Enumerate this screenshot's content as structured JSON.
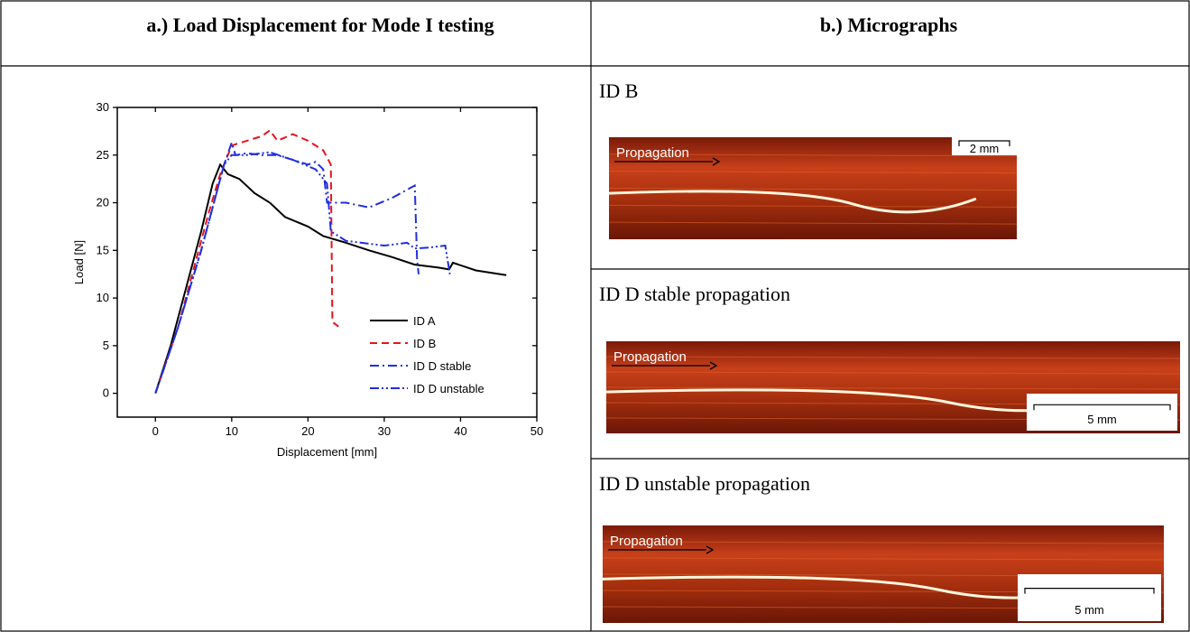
{
  "header": {
    "left": "a.)  Load Displacement for Mode I testing",
    "right": "b.) Micrographs"
  },
  "chart_data": {
    "type": "line",
    "x_label": "Displacement [mm]",
    "y_label": "Load [N]",
    "xlim": [
      -5,
      50
    ],
    "ylim": [
      -2.5,
      30
    ],
    "xticks": [
      0,
      10,
      20,
      30,
      40,
      50
    ],
    "yticks": [
      0,
      5,
      10,
      15,
      20,
      25,
      30
    ],
    "legend": "lower right",
    "series": [
      {
        "name": "ID A",
        "color": "#000000",
        "line_style": "solid",
        "x": [
          0,
          2,
          4,
          6,
          7.5,
          8.5,
          9.5,
          11,
          13,
          15,
          17,
          20,
          22,
          25,
          28,
          31,
          34,
          37,
          38.5,
          39,
          42,
          46
        ],
        "values": [
          0,
          5,
          11,
          17,
          22,
          24,
          23,
          22.5,
          21,
          20,
          18.5,
          17.5,
          16.5,
          15.8,
          15,
          14.3,
          13.5,
          13.2,
          13,
          13.7,
          12.9,
          12.4
        ]
      },
      {
        "name": "ID B",
        "color": "#e8141c",
        "line_style": "dash",
        "x": [
          0,
          3,
          5,
          7,
          8.5,
          10,
          12,
          14,
          15,
          16,
          18,
          20,
          22,
          23,
          23.2,
          24
        ],
        "values": [
          0,
          7,
          13,
          19,
          23,
          26,
          26.5,
          27,
          27.6,
          26.5,
          27.2,
          26.5,
          25.5,
          24,
          7.5,
          7
        ]
      },
      {
        "name": "ID D stable",
        "color": "#1f2fe0",
        "line_style": "dashdot",
        "x": [
          0,
          3,
          6,
          8,
          9,
          10,
          10.5,
          12,
          14,
          16,
          18,
          20,
          21,
          22,
          22.5,
          25,
          28,
          31,
          34,
          34.3,
          34.5
        ],
        "values": [
          0,
          7,
          15,
          21,
          24,
          26.3,
          25,
          25.2,
          25,
          25,
          24.5,
          24,
          24.3,
          23.5,
          20,
          20,
          19.5,
          20.5,
          21.8,
          14,
          12.5
        ]
      },
      {
        "name": "ID D unstable",
        "color": "#1f2fe0",
        "line_style": "dashdotdot",
        "x": [
          0,
          3,
          6,
          9,
          10,
          12,
          15,
          18,
          21,
          22.5,
          23,
          25,
          30,
          33,
          34,
          36,
          38,
          38.5,
          38.6
        ],
        "values": [
          0,
          7,
          15,
          24,
          25,
          25,
          25.3,
          24.5,
          23.5,
          22,
          17,
          16,
          15.5,
          15.8,
          15.2,
          15.3,
          15.5,
          13,
          12.5
        ]
      }
    ]
  },
  "micrographs": [
    {
      "label": "ID B",
      "annotation": "Propagation",
      "scale": "2 mm"
    },
    {
      "label": "ID D stable propagation",
      "annotation": "Propagation",
      "scale": "5 mm"
    },
    {
      "label": "ID D unstable propagation",
      "annotation": "Propagation",
      "scale": "5 mm"
    }
  ]
}
